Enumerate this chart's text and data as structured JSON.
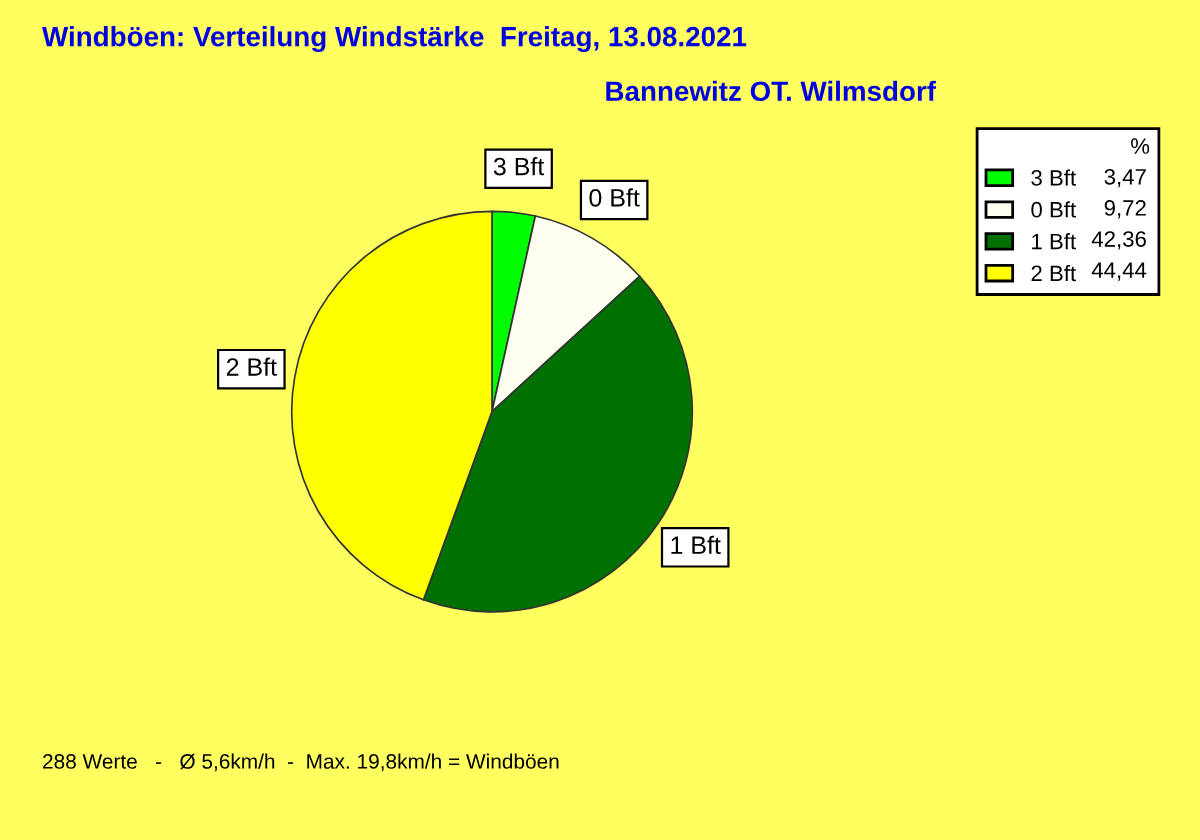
{
  "chart_data": {
    "type": "pie",
    "title": "Windböen: Verteilung Windstärke  Freitag, 13.08.2021",
    "subtitle": "Bannewitz OT. Wilmsdorf",
    "categories": [
      "3 Bft",
      "0 Bft",
      "1 Bft",
      "2 Bft"
    ],
    "values": [
      3.47,
      9.72,
      42.36,
      44.44
    ],
    "value_labels": [
      "3,47",
      "9,72",
      "42,36",
      "44,44"
    ],
    "colors": [
      "#00ff00",
      "#fffff0",
      "#007000",
      "#ffff00"
    ],
    "legend": "top right",
    "legend_title": "%",
    "annotations": [
      "288 Werte   -   Ø 5,6km/h  -  Max. 19,8km/h = Windböen"
    ]
  }
}
